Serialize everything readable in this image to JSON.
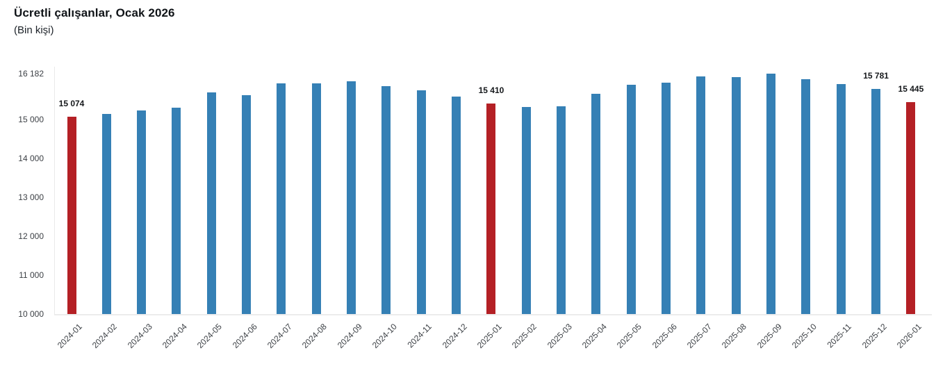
{
  "header": {
    "title": "Ücretli çalışanlar, Ocak 2026",
    "subtitle": "(Bin kişi)"
  },
  "colors": {
    "bar": "#3580b5",
    "highlight": "#b42025",
    "axis_line": "#ebebeb",
    "axis_text": "#3b3f44",
    "value_label_text": "#15181b"
  },
  "chart_data": {
    "type": "bar",
    "title": "Ücretli çalışanlar, Ocak 2026",
    "subtitle": "(Bin kişi)",
    "unit": "Bin kişi",
    "categories": [
      "2024-01",
      "2024-02",
      "2024-03",
      "2024-04",
      "2024-05",
      "2024-06",
      "2024-07",
      "2024-08",
      "2024-09",
      "2024-10",
      "2024-11",
      "2024-12",
      "2025-01",
      "2025-02",
      "2025-03",
      "2025-04",
      "2025-05",
      "2025-06",
      "2025-07",
      "2025-08",
      "2025-09",
      "2025-10",
      "2025-11",
      "2025-12",
      "2026-01"
    ],
    "values": [
      15074,
      15140,
      15240,
      15300,
      15700,
      15630,
      15920,
      15925,
      15990,
      15860,
      15755,
      15595,
      15410,
      15315,
      15345,
      15665,
      15895,
      15945,
      16105,
      16090,
      16182,
      16030,
      15915,
      15781,
      15445
    ],
    "highlighted_categories": [
      "2024-01",
      "2025-01",
      "2026-01"
    ],
    "value_labels": {
      "2024-01": "15 074",
      "2025-01": "15 410",
      "2025-12": "15 781",
      "2026-01": "15 445"
    },
    "y_axis": {
      "min": 10000,
      "max": 16182,
      "ticks": [
        {
          "label": "16 182",
          "value": 16182
        },
        {
          "label": "15 000",
          "value": 15000
        },
        {
          "label": "14 000",
          "value": 14000
        },
        {
          "label": "13 000",
          "value": 13000
        },
        {
          "label": "12 000",
          "value": 12000
        },
        {
          "label": "11 000",
          "value": 11000
        },
        {
          "label": "10 000",
          "value": 10000
        }
      ]
    },
    "grid": false,
    "legend": null,
    "x_tick_rotation": -45
  }
}
